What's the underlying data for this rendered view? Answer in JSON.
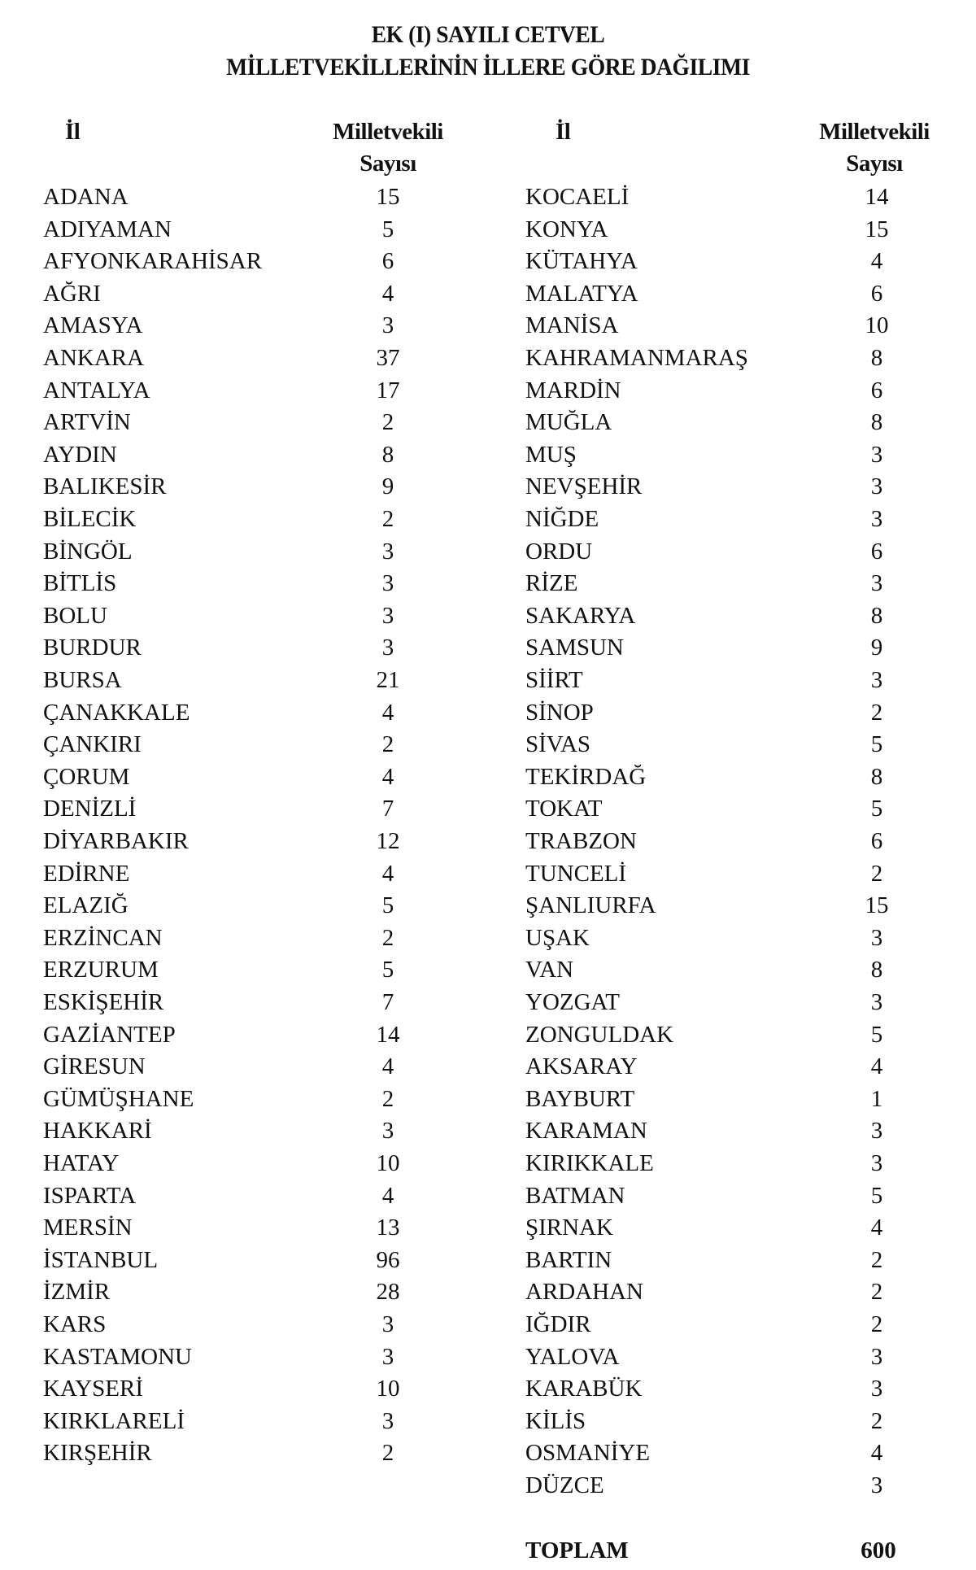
{
  "title": {
    "line1": "EK (I) SAYILI CETVEL",
    "line2": "MİLLETVEKİLLERİNİN İLLERE GÖRE DAĞILIMI"
  },
  "headers": {
    "province": "İl",
    "count_line1": "Milletvekili",
    "count_line2": "Sayısı"
  },
  "left_rows": [
    {
      "il": "ADANA",
      "sayi": "15"
    },
    {
      "il": "ADIYAMAN",
      "sayi": "5"
    },
    {
      "il": "AFYONKARAHİSAR",
      "sayi": "6"
    },
    {
      "il": "AĞRI",
      "sayi": "4"
    },
    {
      "il": "AMASYA",
      "sayi": "3"
    },
    {
      "il": "ANKARA",
      "sayi": "37"
    },
    {
      "il": "ANTALYA",
      "sayi": "17"
    },
    {
      "il": "ARTVİN",
      "sayi": "2"
    },
    {
      "il": "AYDIN",
      "sayi": "8"
    },
    {
      "il": "BALIKESİR",
      "sayi": "9"
    },
    {
      "il": "BİLECİK",
      "sayi": "2"
    },
    {
      "il": "BİNGÖL",
      "sayi": "3"
    },
    {
      "il": "BİTLİS",
      "sayi": "3"
    },
    {
      "il": "BOLU",
      "sayi": "3"
    },
    {
      "il": "BURDUR",
      "sayi": "3"
    },
    {
      "il": "BURSA",
      "sayi": "21"
    },
    {
      "il": "ÇANAKKALE",
      "sayi": "4"
    },
    {
      "il": "ÇANKIRI",
      "sayi": "2"
    },
    {
      "il": "ÇORUM",
      "sayi": "4"
    },
    {
      "il": "DENİZLİ",
      "sayi": "7"
    },
    {
      "il": "DİYARBAKIR",
      "sayi": "12"
    },
    {
      "il": "EDİRNE",
      "sayi": "4"
    },
    {
      "il": "ELAZIĞ",
      "sayi": "5"
    },
    {
      "il": "ERZİNCAN",
      "sayi": "2"
    },
    {
      "il": "ERZURUM",
      "sayi": "5"
    },
    {
      "il": "ESKİŞEHİR",
      "sayi": "7"
    },
    {
      "il": "GAZİANTEP",
      "sayi": "14"
    },
    {
      "il": "GİRESUN",
      "sayi": "4"
    },
    {
      "il": "GÜMÜŞHANE",
      "sayi": "2"
    },
    {
      "il": "HAKKARİ",
      "sayi": "3"
    },
    {
      "il": "HATAY",
      "sayi": "10"
    },
    {
      "il": "ISPARTA",
      "sayi": "4"
    },
    {
      "il": "MERSİN",
      "sayi": "13"
    },
    {
      "il": "İSTANBUL",
      "sayi": "96"
    },
    {
      "il": "İZMİR",
      "sayi": "28"
    },
    {
      "il": "KARS",
      "sayi": "3"
    },
    {
      "il": "KASTAMONU",
      "sayi": "3"
    },
    {
      "il": "KAYSERİ",
      "sayi": "10"
    },
    {
      "il": "KIRKLARELİ",
      "sayi": "3"
    },
    {
      "il": "KIRŞEHİR",
      "sayi": "2"
    }
  ],
  "right_rows": [
    {
      "il": "KOCAELİ",
      "sayi": "14"
    },
    {
      "il": "KONYA",
      "sayi": "15"
    },
    {
      "il": "KÜTAHYA",
      "sayi": "4"
    },
    {
      "il": "MALATYA",
      "sayi": "6"
    },
    {
      "il": "MANİSA",
      "sayi": "10"
    },
    {
      "il": "KAHRAMANMARAŞ",
      "sayi": "8"
    },
    {
      "il": "MARDİN",
      "sayi": "6"
    },
    {
      "il": "MUĞLA",
      "sayi": "8"
    },
    {
      "il": "MUŞ",
      "sayi": "3"
    },
    {
      "il": "NEVŞEHİR",
      "sayi": "3"
    },
    {
      "il": "NİĞDE",
      "sayi": "3"
    },
    {
      "il": "ORDU",
      "sayi": "6"
    },
    {
      "il": "RİZE",
      "sayi": "3"
    },
    {
      "il": "SAKARYA",
      "sayi": "8"
    },
    {
      "il": "SAMSUN",
      "sayi": "9"
    },
    {
      "il": "SİİRT",
      "sayi": "3"
    },
    {
      "il": "SİNOP",
      "sayi": "2"
    },
    {
      "il": "SİVAS",
      "sayi": "5"
    },
    {
      "il": "TEKİRDAĞ",
      "sayi": "8"
    },
    {
      "il": "TOKAT",
      "sayi": "5"
    },
    {
      "il": "TRABZON",
      "sayi": "6"
    },
    {
      "il": "TUNCELİ",
      "sayi": "2"
    },
    {
      "il": "ŞANLIURFA",
      "sayi": "15"
    },
    {
      "il": "UŞAK",
      "sayi": "3"
    },
    {
      "il": "VAN",
      "sayi": "8"
    },
    {
      "il": "YOZGAT",
      "sayi": "3"
    },
    {
      "il": "ZONGULDAK",
      "sayi": "5"
    },
    {
      "il": "AKSARAY",
      "sayi": "4"
    },
    {
      "il": "BAYBURT",
      "sayi": "1"
    },
    {
      "il": "KARAMAN",
      "sayi": "3"
    },
    {
      "il": "KIRIKKALE",
      "sayi": "3"
    },
    {
      "il": "BATMAN",
      "sayi": "5"
    },
    {
      "il": "ŞIRNAK",
      "sayi": "4"
    },
    {
      "il": "BARTIN",
      "sayi": "2"
    },
    {
      "il": "ARDAHAN",
      "sayi": "2"
    },
    {
      "il": "IĞDIR",
      "sayi": "2"
    },
    {
      "il": "YALOVA",
      "sayi": "3"
    },
    {
      "il": "KARABÜK",
      "sayi": "3"
    },
    {
      "il": "KİLİS",
      "sayi": "2"
    },
    {
      "il": "OSMANİYE",
      "sayi": "4"
    },
    {
      "il": "DÜZCE",
      "sayi": "3"
    }
  ],
  "total": {
    "label": "TOPLAM",
    "value": "600"
  }
}
